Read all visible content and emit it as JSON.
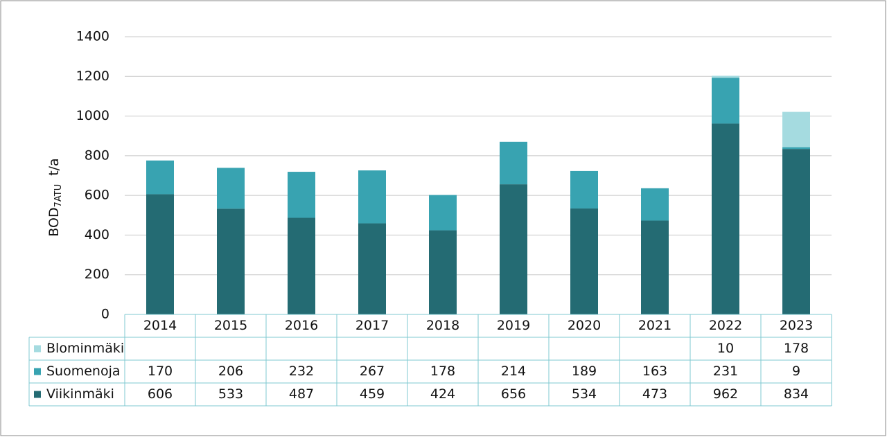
{
  "chart_data": {
    "type": "stacked_bar",
    "y_label": {
      "main": "BOD",
      "sub": "7ATU",
      "unit": "t/a"
    },
    "categories": [
      "2014",
      "2015",
      "2016",
      "2017",
      "2018",
      "2019",
      "2020",
      "2021",
      "2022",
      "2023"
    ],
    "series": [
      {
        "name": "Blominmäki",
        "color": "#a5dbe0",
        "values": [
          null,
          null,
          null,
          null,
          null,
          null,
          null,
          null,
          10,
          178
        ]
      },
      {
        "name": "Suomenoja",
        "color": "#38a3b1",
        "values": [
          170,
          206,
          232,
          267,
          178,
          214,
          189,
          163,
          231,
          9
        ]
      },
      {
        "name": "Viikinmäki",
        "color": "#246b73",
        "values": [
          606,
          533,
          487,
          459,
          424,
          656,
          534,
          473,
          962,
          834
        ]
      }
    ],
    "ylim": [
      0,
      1400
    ],
    "yticks": [
      0,
      200,
      400,
      600,
      800,
      1000,
      1200,
      1400
    ],
    "grid": true
  }
}
